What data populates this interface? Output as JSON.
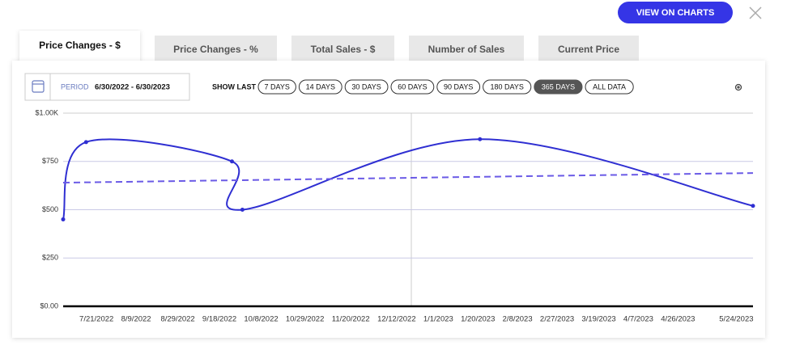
{
  "header": {
    "button": "VIEW ON CHARTS"
  },
  "tabs": [
    "Price Changes - $",
    "Price Changes - %",
    "Total Sales - $",
    "Number of Sales",
    "Current Price"
  ],
  "active_tab": 0,
  "period": {
    "label": "PERIOD",
    "range": "6/30/2022 - 6/30/2023"
  },
  "show_last": {
    "label": "SHOW LAST",
    "options": [
      "7 DAYS",
      "14 DAYS",
      "30 DAYS",
      "60 DAYS",
      "90 DAYS",
      "180 DAYS",
      "365 DAYS",
      "ALL DATA"
    ],
    "active": 6
  },
  "chart_data": {
    "type": "line",
    "x": [
      "7/5/2022",
      "7/16/2022",
      "9/24/2022",
      "9/29/2022",
      "1/21/2023",
      "6/1/2023"
    ],
    "series": [
      {
        "color": "#2f2fd2",
        "values": [
          450,
          850,
          750,
          500,
          865,
          520
        ]
      },
      {
        "color": "#6a5ae6",
        "dashed": true,
        "x": [
          "7/5/2022",
          "6/1/2023"
        ],
        "values": [
          640,
          690
        ]
      }
    ],
    "xlim": [
      "7/5/2022",
      "6/1/2023"
    ],
    "xticks": [
      "7/21/2022",
      "8/9/2022",
      "8/29/2022",
      "9/18/2022",
      "10/8/2022",
      "10/29/2022",
      "11/20/2022",
      "12/12/2022",
      "1/1/2023",
      "1/20/2023",
      "2/8/2023",
      "2/27/2023",
      "3/19/2023",
      "4/7/2023",
      "4/26/2023",
      "5/24/2023"
    ],
    "ylim": [
      0,
      1000
    ],
    "yticks": [
      {
        "value": 0,
        "label": "$0.00"
      },
      {
        "value": 250,
        "label": "$250"
      },
      {
        "value": 500,
        "label": "$500"
      },
      {
        "value": 750,
        "label": "$750"
      },
      {
        "value": 1000,
        "label": "$1.00K"
      }
    ],
    "grid": true
  }
}
